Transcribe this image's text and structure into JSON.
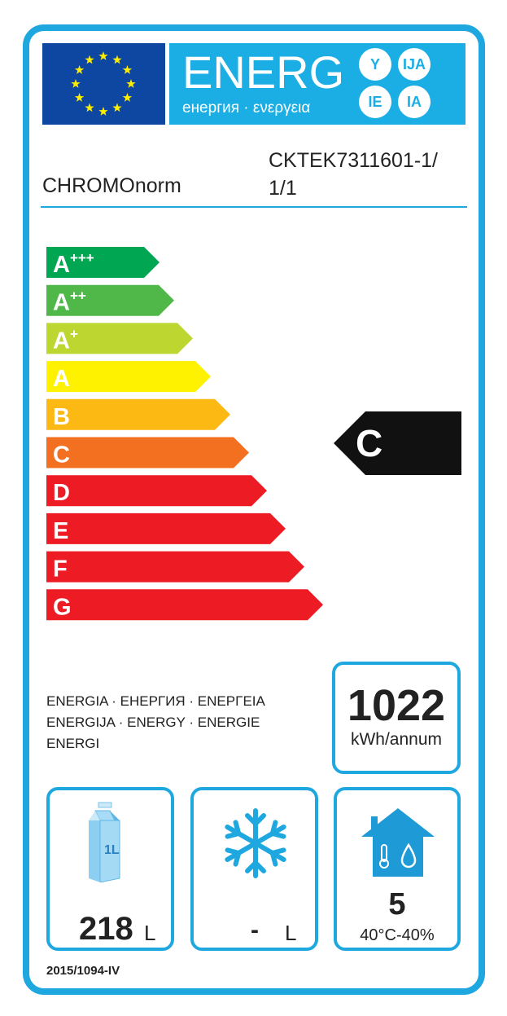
{
  "header": {
    "title": "ENERG",
    "subtitle": "енергия · ενεργεια",
    "badges": [
      "Y",
      "IJA",
      "IE",
      "IA"
    ]
  },
  "supplier": "CHROMOnorm",
  "model": [
    "CKTEK7311601-1/",
    "1/1"
  ],
  "classes": [
    {
      "label": "A",
      "sup": "+++",
      "color": "#00a651"
    },
    {
      "label": "A",
      "sup": "++",
      "color": "#50b848"
    },
    {
      "label": "A",
      "sup": "+",
      "color": "#bed630"
    },
    {
      "label": "A",
      "sup": "",
      "color": "#fff200"
    },
    {
      "label": "B",
      "sup": "",
      "color": "#fdb913"
    },
    {
      "label": "C",
      "sup": "",
      "color": "#f37021"
    },
    {
      "label": "D",
      "sup": "",
      "color": "#ed1c24"
    },
    {
      "label": "E",
      "sup": "",
      "color": "#ed1c24"
    },
    {
      "label": "F",
      "sup": "",
      "color": "#ed1c24"
    },
    {
      "label": "G",
      "sup": "",
      "color": "#ed1c24"
    }
  ],
  "rating": "C",
  "energy_text": [
    "ENERGIA · ЕНЕРГИЯ · ΕΝΕΡΓΕΙΑ",
    "ENERGIJA · ENERGY · ENERGIE",
    "ENERGI"
  ],
  "consumption": {
    "value": "1022",
    "unit": "kWh/annum"
  },
  "fresh_volume": {
    "value": "218",
    "unit": "L",
    "icon": "milk-carton-icon",
    "carton_label": "1L"
  },
  "frozen_volume": {
    "value": "-",
    "unit": "L",
    "icon": "snowflake-icon"
  },
  "climate": {
    "value": "5",
    "conditions": "40°C-40%",
    "icon": "house-climate-icon"
  },
  "regulation": "2015/1094-IV",
  "colors": {
    "accent": "#1fa8e0",
    "eu_blue": "#0e47a1",
    "star": "#ffed00"
  }
}
